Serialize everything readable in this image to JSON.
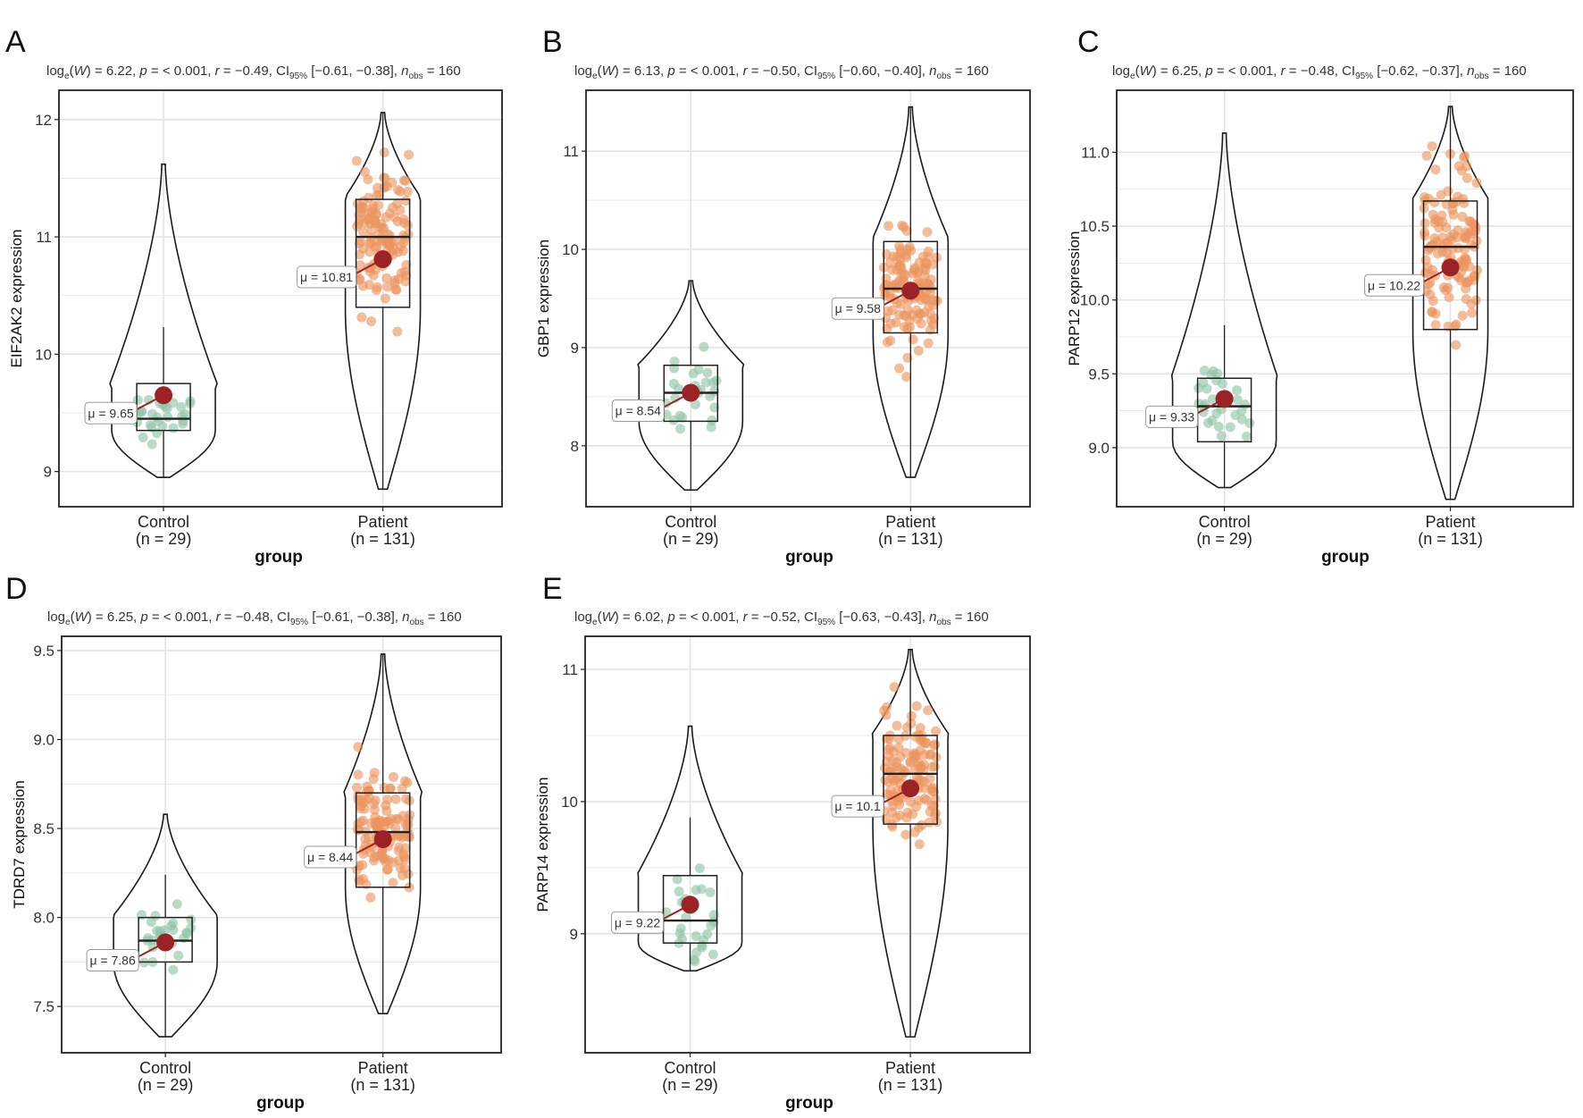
{
  "chart_data": [
    {
      "type": "violin-box-scatter",
      "panel": "A",
      "subtitle": {
        "W": "6.22",
        "p": "< 0.001",
        "r": "−0.49",
        "ci": "[−0.61, −0.38]",
        "n_obs": "160"
      },
      "ylabel": "EIF2AK2 expression",
      "xlabel": "group",
      "ylim": [
        8.7,
        12.25
      ],
      "yticks": [
        "9",
        "10",
        "11",
        "12"
      ],
      "categories": [
        {
          "name": "Control",
          "n_label": "(n = 29)",
          "min": 8.95,
          "q1": 9.35,
          "median": 9.45,
          "q3": 9.75,
          "max": 10.23,
          "violin_min": 8.95,
          "violin_max": 11.62,
          "mean": 9.65,
          "mean_label": "μ = 9.65"
        },
        {
          "name": "Patient",
          "n_label": "(n = 131)",
          "min": 8.85,
          "q1": 10.4,
          "median": 11.0,
          "q3": 11.32,
          "max": 12.06,
          "violin_min": 8.85,
          "violin_max": 12.06,
          "mean": 10.81,
          "mean_label": "μ = 10.81"
        }
      ]
    },
    {
      "type": "violin-box-scatter",
      "panel": "B",
      "subtitle": {
        "W": "6.13",
        "p": "< 0.001",
        "r": "−0.50",
        "ci": "[−0.60, −0.40]",
        "n_obs": "160"
      },
      "ylabel": "GBP1 expression",
      "xlabel": "group",
      "ylim": [
        7.38,
        11.62
      ],
      "yticks": [
        "8",
        "9",
        "10",
        "11"
      ],
      "categories": [
        {
          "name": "Control",
          "n_label": "(n = 29)",
          "min": 7.55,
          "q1": 8.25,
          "median": 8.54,
          "q3": 8.82,
          "max": 9.68,
          "violin_min": 7.55,
          "violin_max": 9.68,
          "mean": 8.54,
          "mean_label": "μ = 8.54"
        },
        {
          "name": "Patient",
          "n_label": "(n = 131)",
          "min": 7.68,
          "q1": 9.15,
          "median": 9.6,
          "q3": 10.08,
          "max": 11.45,
          "violin_min": 7.68,
          "violin_max": 11.45,
          "mean": 9.58,
          "mean_label": "μ = 9.58"
        }
      ]
    },
    {
      "type": "violin-box-scatter",
      "panel": "C",
      "subtitle": {
        "W": "6.25",
        "p": "< 0.001",
        "r": "−0.48",
        "ci": "[−0.62, −0.37]",
        "n_obs": "160"
      },
      "ylabel": "PARP12 expression",
      "xlabel": "group",
      "ylim": [
        8.6,
        11.42
      ],
      "yticks": [
        "9.0",
        "9.5",
        "10.0",
        "10.5",
        "11.0"
      ],
      "categories": [
        {
          "name": "Control",
          "n_label": "(n = 29)",
          "min": 8.73,
          "q1": 9.04,
          "median": 9.28,
          "q3": 9.47,
          "max": 9.83,
          "violin_min": 8.73,
          "violin_max": 11.13,
          "mean": 9.33,
          "mean_label": "μ = 9.33"
        },
        {
          "name": "Patient",
          "n_label": "(n = 131)",
          "min": 8.65,
          "q1": 9.8,
          "median": 10.36,
          "q3": 10.67,
          "max": 11.31,
          "violin_min": 8.65,
          "violin_max": 11.31,
          "mean": 10.22,
          "mean_label": "μ = 10.22"
        }
      ]
    },
    {
      "type": "violin-box-scatter",
      "panel": "D",
      "subtitle": {
        "W": "6.25",
        "p": "< 0.001",
        "r": "−0.48",
        "ci": "[−0.61, −0.38]",
        "n_obs": "160"
      },
      "ylabel": "TDRD7 expression",
      "xlabel": "group",
      "ylim": [
        7.24,
        9.58
      ],
      "yticks": [
        "7.5",
        "8.0",
        "8.5",
        "9.0",
        "9.5"
      ],
      "categories": [
        {
          "name": "Control",
          "n_label": "(n = 29)",
          "min": 7.33,
          "q1": 7.75,
          "median": 7.87,
          "q3": 8.0,
          "max": 8.24,
          "violin_min": 7.33,
          "violin_max": 8.58,
          "mean": 7.86,
          "mean_label": "μ = 7.86"
        },
        {
          "name": "Patient",
          "n_label": "(n = 131)",
          "min": 7.46,
          "q1": 8.17,
          "median": 8.48,
          "q3": 8.7,
          "max": 9.48,
          "violin_min": 7.46,
          "violin_max": 9.48,
          "mean": 8.44,
          "mean_label": "μ = 8.44"
        }
      ]
    },
    {
      "type": "violin-box-scatter",
      "panel": "E",
      "subtitle": {
        "W": "6.02",
        "p": "< 0.001",
        "r": "−0.52",
        "ci": "[−0.63, −0.43]",
        "n_obs": "160"
      },
      "ylabel": "PARP14 expression",
      "xlabel": "group",
      "ylim": [
        8.1,
        11.25
      ],
      "yticks": [
        "9",
        "10",
        "11"
      ],
      "categories": [
        {
          "name": "Control",
          "n_label": "(n = 29)",
          "min": 8.72,
          "q1": 8.93,
          "median": 9.1,
          "q3": 9.44,
          "max": 9.88,
          "violin_min": 8.72,
          "violin_max": 10.57,
          "mean": 9.22,
          "mean_label": "μ = 9.22"
        },
        {
          "name": "Patient",
          "n_label": "(n = 131)",
          "min": 8.22,
          "q1": 9.83,
          "median": 10.21,
          "q3": 10.5,
          "max": 11.15,
          "violin_min": 8.22,
          "violin_max": 11.15,
          "mean": 10.1,
          "mean_label": "μ = 10.1"
        }
      ]
    }
  ],
  "colors": {
    "control": "#8fc4a7",
    "patient": "#ec945e",
    "mean_point": "#9b2226",
    "grid": "#e4e4e4",
    "axis": "#222222"
  }
}
